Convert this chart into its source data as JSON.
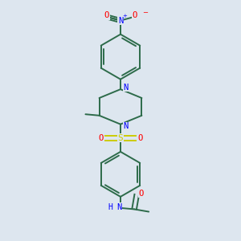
{
  "background_color": "#dde6ef",
  "bond_color": "#2d6b4a",
  "N_color": "#0000ff",
  "O_color": "#ff0000",
  "S_color": "#cccc00",
  "line_width": 1.4,
  "fig_width": 3.0,
  "fig_height": 3.0,
  "dpi": 100,
  "xlim": [
    0.15,
    0.85
  ],
  "ylim": [
    0.02,
    0.98
  ]
}
